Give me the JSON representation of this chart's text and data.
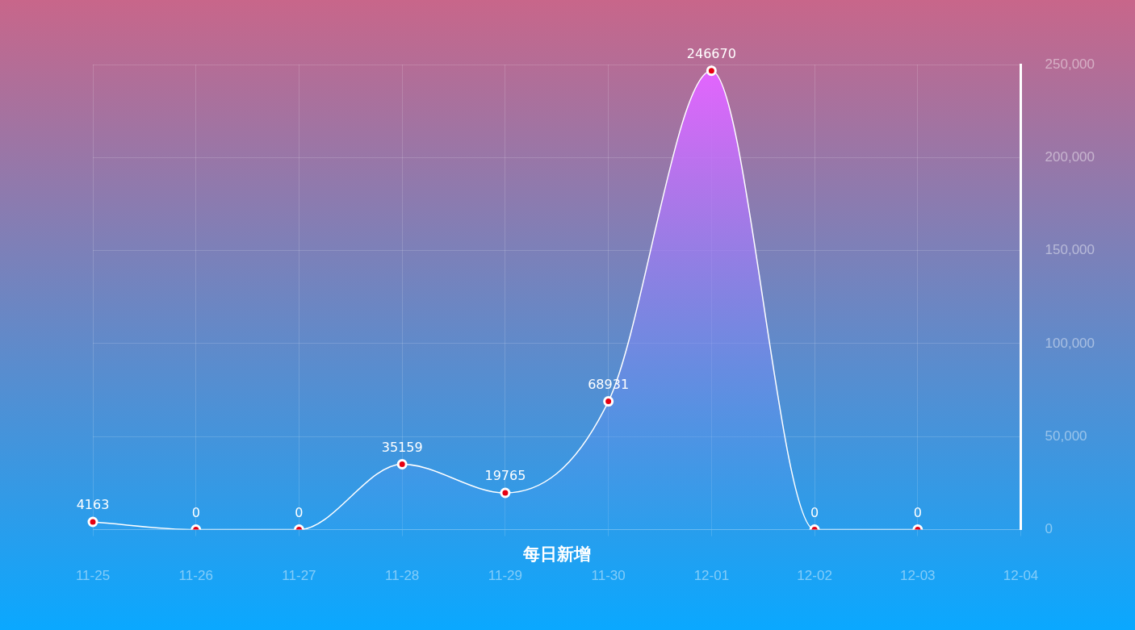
{
  "chart_data": {
    "type": "area",
    "title": "每日新增",
    "categories": [
      "11-25",
      "11-26",
      "11-27",
      "11-28",
      "11-29",
      "11-30",
      "12-01",
      "12-02",
      "12-03",
      "12-04"
    ],
    "series": [
      {
        "color": "#ffffff",
        "values": [
          4163,
          0,
          0,
          35159,
          19765,
          68931,
          246670,
          0,
          0,
          null
        ]
      }
    ],
    "ylim": [
      0,
      250000
    ],
    "yticks": [
      {
        "value": 0,
        "label": "0"
      },
      {
        "value": 50000,
        "label": "50,000"
      },
      {
        "value": 100000,
        "label": "100,000"
      },
      {
        "value": 150000,
        "label": "150,000"
      },
      {
        "value": 200000,
        "label": "200,000"
      },
      {
        "value": 250000,
        "label": "250,000"
      }
    ],
    "grid": true,
    "legend": false,
    "marker": "circle",
    "data_labels": true
  }
}
